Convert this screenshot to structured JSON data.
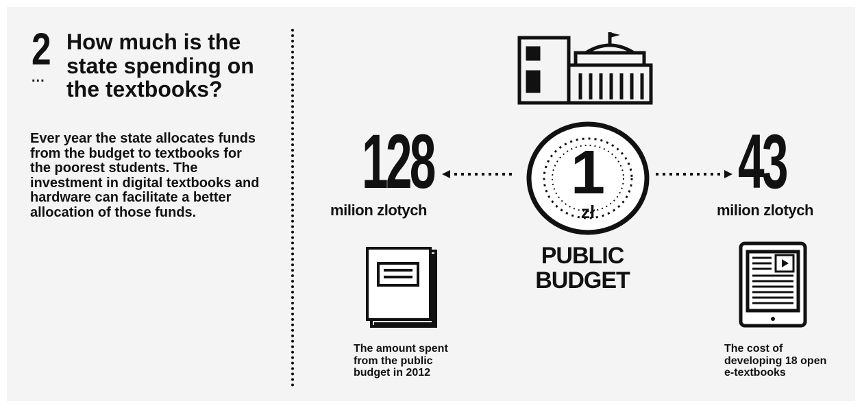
{
  "question": {
    "number": "2",
    "dots": "...",
    "title": "How much is the state spending on the textbooks?"
  },
  "intro": "Ever year the state allocates funds from the budget to textbooks for the poorest students. The investment in digital textbooks and hardware can facilitate a better allocation of those funds.",
  "center": {
    "coin_value": "1",
    "coin_currency": "zł",
    "label_line1": "PUBLIC",
    "label_line2": "BUDGET",
    "icon": "parliament-building-icon"
  },
  "left": {
    "value": "128",
    "unit": "milion zlotych",
    "caption": "The amount spent from the public budget in 2012",
    "icon": "book-icon"
  },
  "right": {
    "value": "43",
    "unit": "milion zlotych",
    "caption": "The cost of developing 18 open e-textbooks",
    "icon": "tablet-icon"
  },
  "colors": {
    "ink": "#111111",
    "background": "#f4f4f4"
  }
}
